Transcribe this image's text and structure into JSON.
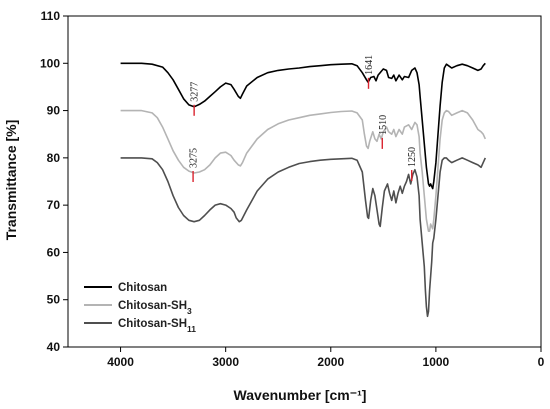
{
  "chart_data": {
    "type": "line",
    "xlabel": "Wavenumber [cm⁻¹]",
    "ylabel": "Transmittance [%]",
    "xlim": [
      4500,
      0
    ],
    "ylim": [
      40,
      110
    ],
    "x_ticks": [
      4000,
      3000,
      2000,
      1000,
      0
    ],
    "y_ticks": [
      40,
      50,
      60,
      70,
      80,
      90,
      100,
      110
    ],
    "grid": false,
    "legend_position": "bottom-left",
    "series": [
      {
        "name": "Chitosan",
        "legend_base": "Chitosan",
        "legend_sub": "",
        "color": "#000000",
        "points": [
          [
            4000,
            100
          ],
          [
            3800,
            100
          ],
          [
            3700,
            99.8
          ],
          [
            3600,
            99.2
          ],
          [
            3550,
            98
          ],
          [
            3500,
            96.5
          ],
          [
            3450,
            94.5
          ],
          [
            3400,
            92.5
          ],
          [
            3350,
            91.2
          ],
          [
            3300,
            90.8
          ],
          [
            3250,
            91.3
          ],
          [
            3200,
            92
          ],
          [
            3150,
            93
          ],
          [
            3100,
            94
          ],
          [
            3050,
            95
          ],
          [
            3000,
            95.8
          ],
          [
            2950,
            95.5
          ],
          [
            2920,
            94.5
          ],
          [
            2880,
            93
          ],
          [
            2860,
            92.6
          ],
          [
            2840,
            93.5
          ],
          [
            2800,
            95.2
          ],
          [
            2700,
            97
          ],
          [
            2600,
            98
          ],
          [
            2500,
            98.5
          ],
          [
            2400,
            98.8
          ],
          [
            2300,
            99
          ],
          [
            2200,
            99.3
          ],
          [
            2100,
            99.5
          ],
          [
            2000,
            99.7
          ],
          [
            1900,
            99.8
          ],
          [
            1800,
            99.9
          ],
          [
            1750,
            99.5
          ],
          [
            1700,
            98
          ],
          [
            1660,
            96.5
          ],
          [
            1645,
            96
          ],
          [
            1620,
            97
          ],
          [
            1590,
            97.2
          ],
          [
            1570,
            96.3
          ],
          [
            1550,
            97.5
          ],
          [
            1500,
            98.8
          ],
          [
            1470,
            98.5
          ],
          [
            1450,
            97
          ],
          [
            1420,
            96.8
          ],
          [
            1400,
            97.5
          ],
          [
            1380,
            96.3
          ],
          [
            1350,
            97.5
          ],
          [
            1320,
            96.5
          ],
          [
            1300,
            97.2
          ],
          [
            1260,
            97
          ],
          [
            1230,
            98.5
          ],
          [
            1200,
            99
          ],
          [
            1180,
            98
          ],
          [
            1160,
            95.5
          ],
          [
            1150,
            93
          ],
          [
            1130,
            88
          ],
          [
            1110,
            83
          ],
          [
            1090,
            78
          ],
          [
            1070,
            74.5
          ],
          [
            1060,
            74
          ],
          [
            1050,
            74.5
          ],
          [
            1030,
            73.5
          ],
          [
            1020,
            75
          ],
          [
            1000,
            79
          ],
          [
            980,
            85
          ],
          [
            960,
            91
          ],
          [
            940,
            96
          ],
          [
            920,
            99
          ],
          [
            900,
            99.8
          ],
          [
            880,
            99.5
          ],
          [
            850,
            99
          ],
          [
            800,
            99.5
          ],
          [
            750,
            99.8
          ],
          [
            700,
            99.5
          ],
          [
            650,
            99
          ],
          [
            600,
            98.5
          ],
          [
            570,
            98.8
          ],
          [
            550,
            99.5
          ],
          [
            530,
            100
          ]
        ]
      },
      {
        "name": "Chitosan-SH3",
        "legend_base": "Chitosan-SH",
        "legend_sub": "3",
        "color": "#b4b4b4",
        "points": [
          [
            4000,
            90
          ],
          [
            3800,
            90
          ],
          [
            3700,
            89.5
          ],
          [
            3650,
            88.5
          ],
          [
            3600,
            86.5
          ],
          [
            3550,
            84
          ],
          [
            3500,
            81.5
          ],
          [
            3450,
            79.5
          ],
          [
            3400,
            78
          ],
          [
            3350,
            77.2
          ],
          [
            3300,
            76.8
          ],
          [
            3250,
            77
          ],
          [
            3200,
            77.5
          ],
          [
            3150,
            78.5
          ],
          [
            3100,
            80
          ],
          [
            3050,
            81
          ],
          [
            3000,
            81.2
          ],
          [
            2950,
            80.5
          ],
          [
            2920,
            79.5
          ],
          [
            2880,
            78.5
          ],
          [
            2860,
            78.3
          ],
          [
            2840,
            79
          ],
          [
            2800,
            81
          ],
          [
            2700,
            84
          ],
          [
            2600,
            86
          ],
          [
            2500,
            87.2
          ],
          [
            2400,
            88
          ],
          [
            2300,
            88.5
          ],
          [
            2200,
            89
          ],
          [
            2100,
            89.3
          ],
          [
            2000,
            89.6
          ],
          [
            1900,
            89.8
          ],
          [
            1800,
            89.9
          ],
          [
            1750,
            89.5
          ],
          [
            1700,
            88
          ],
          [
            1680,
            85
          ],
          [
            1660,
            82.5
          ],
          [
            1645,
            82
          ],
          [
            1630,
            83.5
          ],
          [
            1600,
            85.5
          ],
          [
            1580,
            84
          ],
          [
            1560,
            83.5
          ],
          [
            1540,
            85
          ],
          [
            1520,
            84
          ],
          [
            1500,
            85.5
          ],
          [
            1470,
            86.5
          ],
          [
            1450,
            85.5
          ],
          [
            1420,
            85
          ],
          [
            1400,
            86
          ],
          [
            1380,
            84.5
          ],
          [
            1350,
            86
          ],
          [
            1320,
            85
          ],
          [
            1300,
            86.5
          ],
          [
            1260,
            87
          ],
          [
            1230,
            86
          ],
          [
            1200,
            87.5
          ],
          [
            1180,
            87
          ],
          [
            1160,
            84.5
          ],
          [
            1150,
            81
          ],
          [
            1130,
            77
          ],
          [
            1110,
            72
          ],
          [
            1090,
            67
          ],
          [
            1070,
            64.5
          ],
          [
            1060,
            64.5
          ],
          [
            1050,
            66
          ],
          [
            1030,
            65
          ],
          [
            1020,
            67
          ],
          [
            1000,
            72
          ],
          [
            980,
            78
          ],
          [
            960,
            84
          ],
          [
            940,
            88
          ],
          [
            920,
            89.5
          ],
          [
            900,
            90
          ],
          [
            880,
            89.8
          ],
          [
            850,
            89
          ],
          [
            800,
            89.5
          ],
          [
            750,
            90
          ],
          [
            700,
            89.5
          ],
          [
            650,
            88
          ],
          [
            600,
            86
          ],
          [
            570,
            85.5
          ],
          [
            550,
            85
          ],
          [
            530,
            84
          ]
        ]
      },
      {
        "name": "Chitosan-SH11",
        "legend_base": "Chitosan-SH",
        "legend_sub": "11",
        "color": "#4f4f4f",
        "points": [
          [
            4000,
            80
          ],
          [
            3800,
            80
          ],
          [
            3700,
            79.8
          ],
          [
            3650,
            79
          ],
          [
            3600,
            77.5
          ],
          [
            3550,
            75
          ],
          [
            3500,
            72
          ],
          [
            3450,
            69.5
          ],
          [
            3400,
            67.8
          ],
          [
            3350,
            66.8
          ],
          [
            3300,
            66.5
          ],
          [
            3250,
            66.8
          ],
          [
            3200,
            67.8
          ],
          [
            3150,
            69
          ],
          [
            3100,
            70
          ],
          [
            3050,
            70.3
          ],
          [
            3000,
            70
          ],
          [
            2950,
            69.3
          ],
          [
            2920,
            68.5
          ],
          [
            2900,
            67.3
          ],
          [
            2870,
            66.5
          ],
          [
            2850,
            66.8
          ],
          [
            2800,
            69
          ],
          [
            2700,
            73
          ],
          [
            2600,
            75.5
          ],
          [
            2500,
            77
          ],
          [
            2400,
            78
          ],
          [
            2300,
            78.8
          ],
          [
            2200,
            79.2
          ],
          [
            2100,
            79.5
          ],
          [
            2000,
            79.7
          ],
          [
            1900,
            79.8
          ],
          [
            1800,
            79.9
          ],
          [
            1750,
            79.5
          ],
          [
            1700,
            77
          ],
          [
            1670,
            71
          ],
          [
            1650,
            67.5
          ],
          [
            1640,
            67.2
          ],
          [
            1620,
            71
          ],
          [
            1600,
            73.5
          ],
          [
            1580,
            72
          ],
          [
            1560,
            69
          ],
          [
            1540,
            66
          ],
          [
            1530,
            65.5
          ],
          [
            1510,
            69.5
          ],
          [
            1490,
            73
          ],
          [
            1460,
            74.5
          ],
          [
            1440,
            72.5
          ],
          [
            1420,
            71
          ],
          [
            1400,
            73
          ],
          [
            1380,
            70.5
          ],
          [
            1360,
            72.5
          ],
          [
            1340,
            74
          ],
          [
            1320,
            72.5
          ],
          [
            1300,
            74
          ],
          [
            1280,
            75
          ],
          [
            1260,
            76.5
          ],
          [
            1240,
            74.5
          ],
          [
            1220,
            76.5
          ],
          [
            1200,
            77.5
          ],
          [
            1180,
            76
          ],
          [
            1160,
            72
          ],
          [
            1150,
            67
          ],
          [
            1130,
            62
          ],
          [
            1110,
            57
          ],
          [
            1100,
            52
          ],
          [
            1090,
            48.5
          ],
          [
            1080,
            46.5
          ],
          [
            1070,
            47.5
          ],
          [
            1060,
            52
          ],
          [
            1040,
            58
          ],
          [
            1030,
            62
          ],
          [
            1020,
            63
          ],
          [
            1000,
            67
          ],
          [
            980,
            72
          ],
          [
            960,
            77
          ],
          [
            940,
            79.5
          ],
          [
            920,
            80
          ],
          [
            900,
            80
          ],
          [
            880,
            79.5
          ],
          [
            850,
            79
          ],
          [
            800,
            79.5
          ],
          [
            750,
            80
          ],
          [
            700,
            79.5
          ],
          [
            650,
            79
          ],
          [
            600,
            78.5
          ],
          [
            570,
            78
          ],
          [
            550,
            79
          ],
          [
            530,
            80
          ]
        ]
      }
    ],
    "annotations": [
      {
        "label": "3277",
        "x": 3300,
        "y": 90.8
      },
      {
        "label": "1641",
        "x": 1641,
        "y": 96.5
      },
      {
        "label": "3275",
        "x": 3310,
        "y": 76.8
      },
      {
        "label": "1510",
        "x": 1510,
        "y": 83.8
      },
      {
        "label": "1250",
        "x": 1230,
        "y": 77
      }
    ],
    "annotation_color": "#d9232e"
  }
}
